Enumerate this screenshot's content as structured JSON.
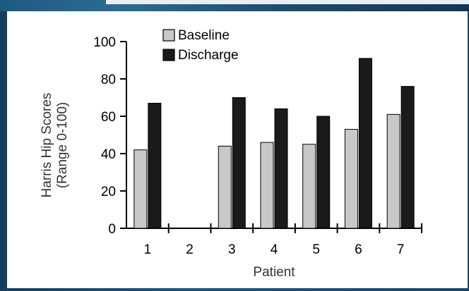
{
  "chart_data": {
    "type": "bar",
    "categories": [
      "1",
      "2",
      "3",
      "4",
      "5",
      "6",
      "7"
    ],
    "series": [
      {
        "name": "Baseline",
        "values": [
          42,
          null,
          44,
          46,
          45,
          53,
          61
        ],
        "color": "#c8c8c8"
      },
      {
        "name": "Discharge",
        "values": [
          67,
          null,
          70,
          64,
          60,
          91,
          76
        ],
        "color": "#1a1a1a"
      }
    ],
    "title": "",
    "xlabel": "Patient",
    "ylabel": [
      "Harris Hip Scores",
      "(Range 0-100)"
    ],
    "ylim": [
      0,
      100
    ],
    "yticks": [
      "0",
      "20",
      "40",
      "60",
      "80",
      "100"
    ],
    "grid": false,
    "legend_position": "top-center"
  },
  "colors": {
    "background": "#1b4566",
    "panel": "#ffffff"
  }
}
